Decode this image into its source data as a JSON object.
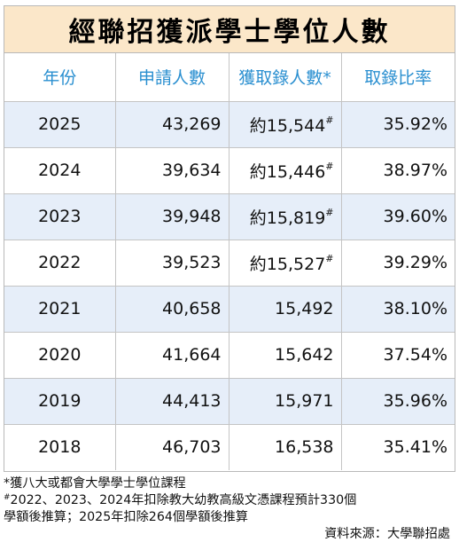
{
  "title": "經聯招獲派學士學位人數",
  "headers": [
    "年份",
    "申請人數",
    "獲取錄人數*",
    "取錄比率"
  ],
  "rows": [
    {
      "year": "2025",
      "applicants": "43,269",
      "admitted": "約15,544",
      "admitted_mark": "#",
      "rate": "35.92%"
    },
    {
      "year": "2024",
      "applicants": "39,634",
      "admitted": "約15,446",
      "admitted_mark": "#",
      "rate": "38.97%"
    },
    {
      "year": "2023",
      "applicants": "39,948",
      "admitted": "約15,819",
      "admitted_mark": "#",
      "rate": "39.60%"
    },
    {
      "year": "2022",
      "applicants": "39,523",
      "admitted": "約15,527",
      "admitted_mark": "#",
      "rate": "39.29%"
    },
    {
      "year": "2021",
      "applicants": "40,658",
      "admitted": "15,492",
      "admitted_mark": "",
      "rate": "38.10%"
    },
    {
      "year": "2020",
      "applicants": "41,664",
      "admitted": "15,642",
      "admitted_mark": "",
      "rate": "37.54%"
    },
    {
      "year": "2019",
      "applicants": "44,413",
      "admitted": "15,971",
      "admitted_mark": "",
      "rate": "35.96%"
    },
    {
      "year": "2018",
      "applicants": "46,703",
      "admitted": "16,538",
      "admitted_mark": "",
      "rate": "35.41%"
    }
  ],
  "shaded_row_color": "#e6eef9",
  "title_bg_color": "#fbe7c9",
  "header_text_color": "#2a8fd0",
  "notes": {
    "note1": "*獲八大或都會大學學士學位課程",
    "note2_mark": "#",
    "note2_line1": "2022、2023、2024年扣除教大幼教高級文憑課程預計330個",
    "note2_line2": "學額後推算；2025年扣除264個學額後推算",
    "source": "資料來源：大學聯招處"
  }
}
